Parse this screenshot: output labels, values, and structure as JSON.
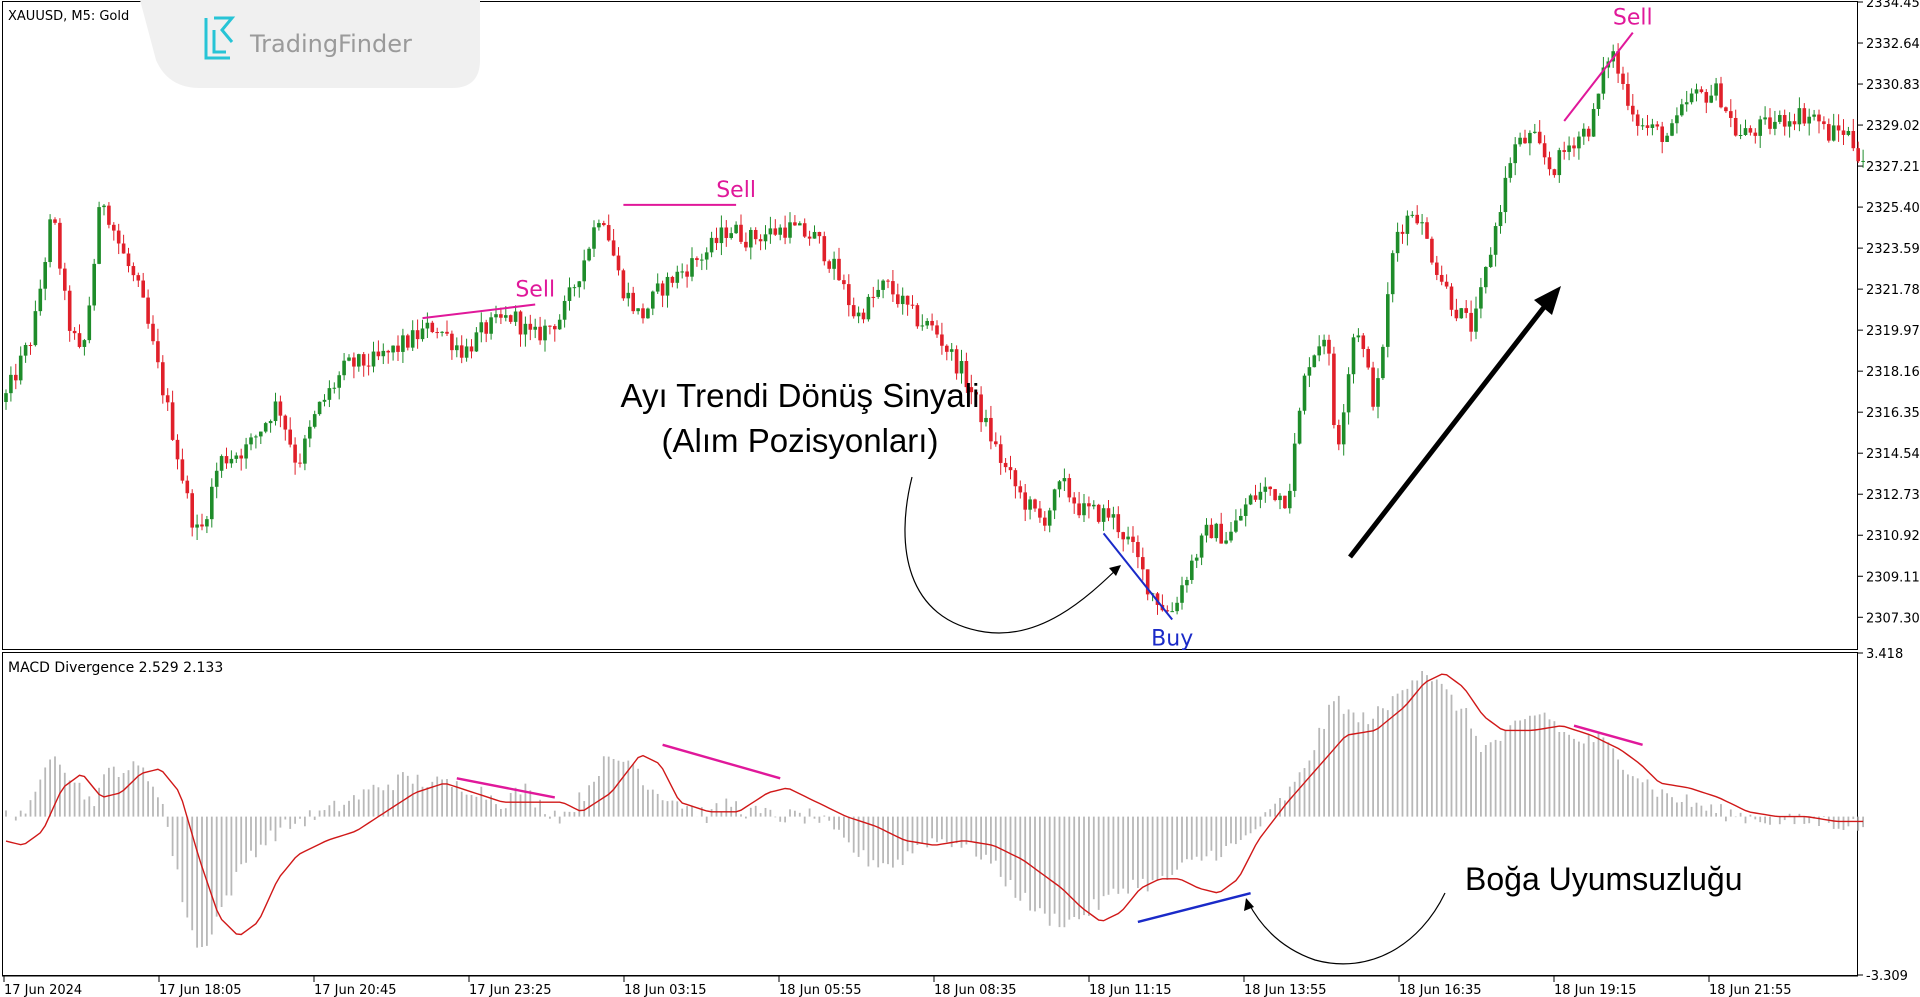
{
  "header": {
    "symbol_label": "XAUUSD, M5:  Gold",
    "watermark_text": "TradingFinder",
    "indicator_label": "MACD Divergence 2.529 2.133"
  },
  "colors": {
    "bull": "#1e8c2a",
    "bear": "#e0202a",
    "sell": "#e0189a",
    "buy": "#1a2ac8",
    "signal": "#d01818",
    "histogram": "#b8b8b8",
    "axis_text": "#000000",
    "frame": "#000000"
  },
  "annotations": {
    "reversal_line1": "Ayı Trendi Dönüş Sinyali",
    "reversal_line2": "(Alım Pozisyonları)",
    "divergence": "Boğa Uyumsuzluğu"
  },
  "chart_data": [
    {
      "type": "candlestick",
      "symbol": "XAUUSD",
      "timeframe": "M5",
      "ylim": [
        2305.9,
        2334.45
      ],
      "price_ticks": [
        "2334.45",
        "2332.64",
        "2330.83",
        "2329.02",
        "2327.21",
        "2325.40",
        "2323.59",
        "2321.78",
        "2319.97",
        "2318.16",
        "2316.35",
        "2314.54",
        "2312.73",
        "2310.92",
        "2309.11",
        "2307.30"
      ],
      "time_ticks": [
        "17 Jun 2024",
        "17 Jun 18:05",
        "17 Jun 20:45",
        "17 Jun 23:25",
        "18 Jun 03:15",
        "18 Jun 05:55",
        "18 Jun 08:35",
        "18 Jun 11:15",
        "18 Jun 13:55",
        "18 Jun 16:35",
        "18 Jun 19:15",
        "18 Jun 21:55"
      ],
      "path": [
        [
          0,
          2316.8
        ],
        [
          6,
          2319.8
        ],
        [
          10,
          2325.2
        ],
        [
          13,
          2320.5
        ],
        [
          16,
          2318.6
        ],
        [
          18,
          2322.0
        ],
        [
          20,
          2326.0
        ],
        [
          24,
          2323.5
        ],
        [
          28,
          2321.5
        ],
        [
          34,
          2316.0
        ],
        [
          38,
          2312.0
        ],
        [
          40,
          2310.8
        ],
        [
          44,
          2314.2
        ],
        [
          50,
          2314.8
        ],
        [
          56,
          2316.8
        ],
        [
          60,
          2314.0
        ],
        [
          64,
          2316.4
        ],
        [
          70,
          2318.4
        ],
        [
          76,
          2318.6
        ],
        [
          82,
          2319.4
        ],
        [
          88,
          2320.2
        ],
        [
          94,
          2319.0
        ],
        [
          98,
          2320.0
        ],
        [
          104,
          2320.6
        ],
        [
          108,
          2319.6
        ],
        [
          114,
          2320.6
        ],
        [
          118,
          2322.8
        ],
        [
          122,
          2325.4
        ],
        [
          126,
          2322.0
        ],
        [
          130,
          2320.5
        ],
        [
          134,
          2321.8
        ],
        [
          138,
          2322.5
        ],
        [
          144,
          2323.5
        ],
        [
          148,
          2324.5
        ],
        [
          152,
          2324.0
        ],
        [
          160,
          2324.5
        ],
        [
          166,
          2324.0
        ],
        [
          170,
          2322.5
        ],
        [
          174,
          2320.5
        ],
        [
          180,
          2322.0
        ],
        [
          186,
          2320.5
        ],
        [
          190,
          2320.0
        ],
        [
          196,
          2318.0
        ],
        [
          200,
          2316.0
        ],
        [
          204,
          2314.0
        ],
        [
          208,
          2312.5
        ],
        [
          212,
          2311.5
        ],
        [
          216,
          2313.2
        ],
        [
          220,
          2312.0
        ],
        [
          226,
          2311.8
        ],
        [
          230,
          2310.5
        ],
        [
          234,
          2308.5
        ],
        [
          238,
          2307.4
        ],
        [
          242,
          2309.5
        ],
        [
          246,
          2311.2
        ],
        [
          250,
          2310.8
        ],
        [
          254,
          2312.4
        ],
        [
          258,
          2313.0
        ],
        [
          262,
          2312.5
        ],
        [
          266,
          2318.5
        ],
        [
          270,
          2320.0
        ],
        [
          272,
          2314.5
        ],
        [
          276,
          2320.5
        ],
        [
          280,
          2316.5
        ],
        [
          284,
          2324.2
        ],
        [
          288,
          2325.4
        ],
        [
          292,
          2323.0
        ],
        [
          296,
          2321.0
        ],
        [
          300,
          2320.0
        ],
        [
          304,
          2324.0
        ],
        [
          308,
          2328.0
        ],
        [
          312,
          2328.5
        ],
        [
          316,
          2327.0
        ],
        [
          320,
          2328.3
        ],
        [
          324,
          2329.0
        ],
        [
          328,
          2332.5
        ],
        [
          330,
          2331.0
        ],
        [
          334,
          2329.0
        ],
        [
          340,
          2328.5
        ],
        [
          344,
          2330.2
        ],
        [
          350,
          2330.5
        ],
        [
          354,
          2328.5
        ],
        [
          360,
          2329.0
        ],
        [
          366,
          2329.5
        ],
        [
          370,
          2329.4
        ],
        [
          372,
          2328.6
        ],
        [
          376,
          2328.8
        ],
        [
          379,
          2327.6
        ]
      ],
      "sell_signals": [
        {
          "label": "Sell",
          "from": [
            85,
            2320.5
          ],
          "to": [
            108,
            2321.1
          ]
        },
        {
          "label": "Sell",
          "from": [
            126,
            2325.5
          ],
          "to": [
            149,
            2325.5
          ]
        },
        {
          "label": "Sell",
          "from": [
            318,
            2329.2
          ],
          "to": [
            332,
            2333.1
          ]
        }
      ],
      "buy_signals": [
        {
          "label": "Buy",
          "from": [
            224,
            2311.0
          ],
          "to": [
            238,
            2307.2
          ]
        }
      ]
    },
    {
      "type": "histogram+line",
      "name": "MACD Divergence",
      "ylim": [
        -3.309,
        3.418
      ],
      "y_ticks": [
        "3.418",
        "-3.309"
      ],
      "hist_path": [
        [
          0,
          0
        ],
        [
          6,
          0.2
        ],
        [
          10,
          1.5
        ],
        [
          14,
          0.8
        ],
        [
          18,
          0.3
        ],
        [
          22,
          1.0
        ],
        [
          28,
          1.0
        ],
        [
          32,
          0.5
        ],
        [
          36,
          -1.5
        ],
        [
          40,
          -2.9
        ],
        [
          44,
          -2.0
        ],
        [
          50,
          -0.8
        ],
        [
          56,
          -0.3
        ],
        [
          60,
          -0.1
        ],
        [
          66,
          0.1
        ],
        [
          70,
          0.3
        ],
        [
          76,
          0.6
        ],
        [
          82,
          0.8
        ],
        [
          88,
          0.7
        ],
        [
          96,
          0.6
        ],
        [
          102,
          0.3
        ],
        [
          106,
          0.6
        ],
        [
          110,
          0.2
        ],
        [
          114,
          0.0
        ],
        [
          118,
          0.4
        ],
        [
          122,
          1.1
        ],
        [
          128,
          1.2
        ],
        [
          132,
          0.6
        ],
        [
          138,
          0.3
        ],
        [
          144,
          0.0
        ],
        [
          148,
          0.3
        ],
        [
          152,
          0.1
        ],
        [
          158,
          0.0
        ],
        [
          166,
          0.0
        ],
        [
          170,
          -0.4
        ],
        [
          176,
          -0.9
        ],
        [
          182,
          -1.0
        ],
        [
          188,
          -0.5
        ],
        [
          194,
          -0.5
        ],
        [
          200,
          -0.8
        ],
        [
          206,
          -1.5
        ],
        [
          212,
          -2.1
        ],
        [
          218,
          -2.2
        ],
        [
          224,
          -1.8
        ],
        [
          230,
          -1.4
        ],
        [
          236,
          -1.4
        ],
        [
          240,
          -1.1
        ],
        [
          246,
          -0.8
        ],
        [
          252,
          -0.6
        ],
        [
          258,
          0.0
        ],
        [
          264,
          0.7
        ],
        [
          268,
          1.6
        ],
        [
          272,
          2.5
        ],
        [
          276,
          2.0
        ],
        [
          282,
          2.2
        ],
        [
          286,
          2.8
        ],
        [
          290,
          3.1
        ],
        [
          294,
          2.6
        ],
        [
          298,
          2.2
        ],
        [
          302,
          1.4
        ],
        [
          308,
          1.8
        ],
        [
          314,
          2.2
        ],
        [
          320,
          1.6
        ],
        [
          326,
          1.6
        ],
        [
          332,
          1.0
        ],
        [
          338,
          0.5
        ],
        [
          344,
          0.3
        ],
        [
          350,
          0.1
        ],
        [
          356,
          0.0
        ],
        [
          364,
          -0.1
        ],
        [
          372,
          -0.1
        ],
        [
          379,
          -0.2
        ]
      ],
      "signal_path": [
        [
          0,
          -0.5
        ],
        [
          4,
          -0.6
        ],
        [
          8,
          -0.3
        ],
        [
          12,
          0.6
        ],
        [
          16,
          0.9
        ],
        [
          20,
          0.4
        ],
        [
          24,
          0.5
        ],
        [
          28,
          0.9
        ],
        [
          32,
          1.0
        ],
        [
          36,
          0.5
        ],
        [
          40,
          -0.9
        ],
        [
          44,
          -2.1
        ],
        [
          48,
          -2.5
        ],
        [
          52,
          -2.2
        ],
        [
          56,
          -1.3
        ],
        [
          60,
          -0.8
        ],
        [
          66,
          -0.5
        ],
        [
          72,
          -0.3
        ],
        [
          78,
          0.1
        ],
        [
          84,
          0.5
        ],
        [
          90,
          0.7
        ],
        [
          96,
          0.5
        ],
        [
          102,
          0.3
        ],
        [
          108,
          0.3
        ],
        [
          114,
          0.3
        ],
        [
          118,
          0.1
        ],
        [
          124,
          0.5
        ],
        [
          130,
          1.3
        ],
        [
          134,
          1.1
        ],
        [
          138,
          0.3
        ],
        [
          144,
          0.1
        ],
        [
          150,
          0.1
        ],
        [
          156,
          0.5
        ],
        [
          160,
          0.6
        ],
        [
          166,
          0.3
        ],
        [
          172,
          0.0
        ],
        [
          178,
          -0.2
        ],
        [
          184,
          -0.5
        ],
        [
          190,
          -0.6
        ],
        [
          196,
          -0.5
        ],
        [
          202,
          -0.6
        ],
        [
          208,
          -0.9
        ],
        [
          212,
          -1.2
        ],
        [
          216,
          -1.5
        ],
        [
          220,
          -1.9
        ],
        [
          224,
          -2.2
        ],
        [
          228,
          -2.0
        ],
        [
          232,
          -1.5
        ],
        [
          236,
          -1.3
        ],
        [
          240,
          -1.3
        ],
        [
          244,
          -1.5
        ],
        [
          248,
          -1.6
        ],
        [
          252,
          -1.3
        ],
        [
          256,
          -0.5
        ],
        [
          262,
          0.3
        ],
        [
          268,
          1.0
        ],
        [
          274,
          1.7
        ],
        [
          280,
          1.8
        ],
        [
          286,
          2.3
        ],
        [
          290,
          2.8
        ],
        [
          294,
          3.0
        ],
        [
          298,
          2.7
        ],
        [
          302,
          2.1
        ],
        [
          306,
          1.8
        ],
        [
          312,
          1.8
        ],
        [
          318,
          1.9
        ],
        [
          324,
          1.7
        ],
        [
          330,
          1.4
        ],
        [
          334,
          1.1
        ],
        [
          338,
          0.7
        ],
        [
          344,
          0.6
        ],
        [
          350,
          0.4
        ],
        [
          356,
          0.1
        ],
        [
          362,
          0.0
        ],
        [
          368,
          0.0
        ],
        [
          374,
          -0.1
        ],
        [
          379,
          -0.1
        ]
      ],
      "sell_divergence": [
        {
          "from": [
            92,
            0.8
          ],
          "to": [
            112,
            0.4
          ]
        },
        {
          "from": [
            134,
            1.5
          ],
          "to": [
            158,
            0.8
          ]
        },
        {
          "from": [
            320,
            1.9
          ],
          "to": [
            334,
            1.5
          ]
        }
      ],
      "buy_divergence": [
        {
          "from": [
            231,
            -2.2
          ],
          "to": [
            254,
            -1.6
          ]
        }
      ]
    }
  ]
}
